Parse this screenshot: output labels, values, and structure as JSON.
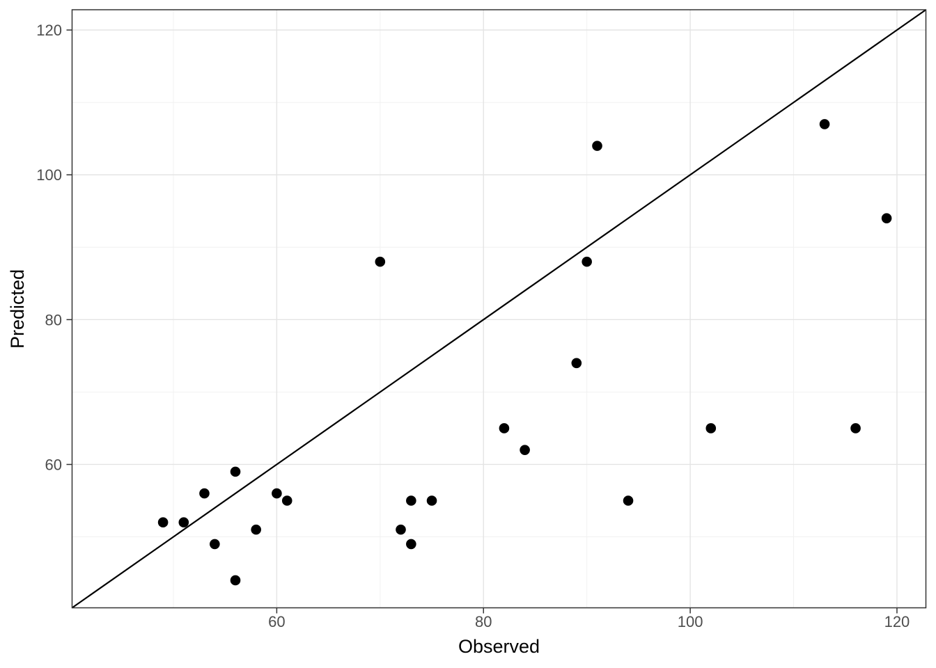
{
  "chart_data": {
    "type": "scatter",
    "title": "",
    "xlabel": "Observed",
    "ylabel": "Predicted",
    "xlim": [
      40.2,
      122.8
    ],
    "ylim": [
      40.2,
      122.8
    ],
    "x_major_ticks": [
      60,
      80,
      100,
      120
    ],
    "y_major_ticks": [
      60,
      80,
      100,
      120
    ],
    "x_minor_gridlines": [
      50,
      70,
      90,
      110
    ],
    "y_minor_gridlines": [
      50,
      70,
      90,
      110
    ],
    "grid": "major and minor gridlines on, light gray, theme_bw style",
    "legend_position": "none",
    "reference_line": {
      "kind": "identity y = x",
      "x1": 40.2,
      "y1": 40.2,
      "x2": 122.8,
      "y2": 122.8
    },
    "series": [
      {
        "name": "observed-vs-predicted",
        "marker": "filled-circle",
        "marker_radius_px": 7.3,
        "points": [
          {
            "x": 49,
            "y": 52
          },
          {
            "x": 51,
            "y": 52
          },
          {
            "x": 53,
            "y": 56
          },
          {
            "x": 54,
            "y": 49
          },
          {
            "x": 56,
            "y": 44
          },
          {
            "x": 56,
            "y": 59
          },
          {
            "x": 58,
            "y": 51
          },
          {
            "x": 60,
            "y": 56
          },
          {
            "x": 61,
            "y": 55
          },
          {
            "x": 70,
            "y": 88
          },
          {
            "x": 72,
            "y": 51
          },
          {
            "x": 73,
            "y": 49
          },
          {
            "x": 73,
            "y": 55
          },
          {
            "x": 75,
            "y": 55
          },
          {
            "x": 82,
            "y": 65
          },
          {
            "x": 84,
            "y": 62
          },
          {
            "x": 89,
            "y": 74
          },
          {
            "x": 90,
            "y": 88
          },
          {
            "x": 91,
            "y": 104
          },
          {
            "x": 94,
            "y": 55
          },
          {
            "x": 102,
            "y": 65
          },
          {
            "x": 113,
            "y": 107
          },
          {
            "x": 116,
            "y": 65
          },
          {
            "x": 119,
            "y": 94
          }
        ]
      }
    ],
    "colors": {
      "point": "#000000",
      "reference_line": "#000000",
      "panel_border": "#333333",
      "tick_mark": "#333333",
      "tick_label_text": "#4d4d4d",
      "axis_title_text": "#000000",
      "grid_major": "#e4e4e4",
      "grid_minor": "#f1f1f1",
      "background": "#ffffff"
    }
  }
}
